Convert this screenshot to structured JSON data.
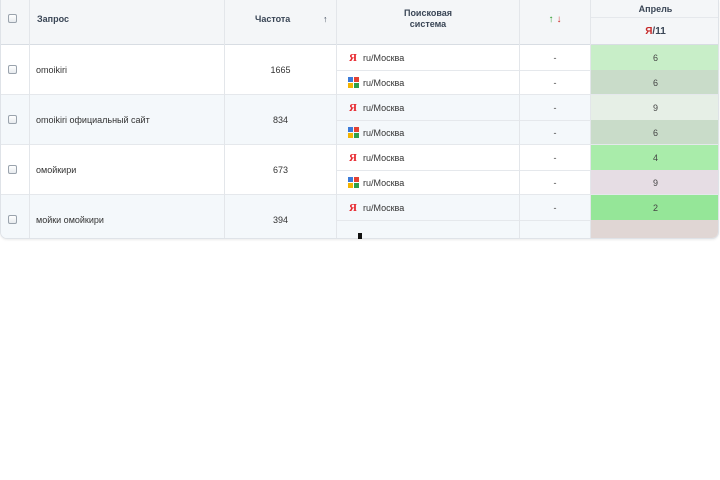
{
  "header": {
    "query_label": "Запрос",
    "frequency_label": "Частота",
    "frequency_sort_arrow": "↑",
    "search_engine_label_line1": "Поисковая",
    "search_engine_label_line2": "система",
    "change_up_arrow": "↑",
    "change_down_arrow": "↓",
    "month_label": "Апрель",
    "date_engine": "Я",
    "date_sep": "/",
    "date_day": "11"
  },
  "colors": {
    "header_bg": "#f4f6f8",
    "row_alt_bg": "#f4f8fb",
    "yandex_red": "#e8242b",
    "rank_green_light": "#c8eec8",
    "rank_green": "#a9ecaa",
    "rank_green_strong": "#95e698",
    "rank_gray_green": "#c9dcc9",
    "rank_pale": "#e6efe6",
    "rank_mauve": "#e6dde4",
    "rank_brown": "#e0d6d4"
  },
  "rows": [
    {
      "query": "omoikiri",
      "frequency": "1665",
      "engines": [
        {
          "icon": "yandex-icon",
          "region": "ru/Москва",
          "change": "-",
          "rank": "6",
          "rank_color": "#c8eec8"
        },
        {
          "icon": "google-icon",
          "region": "ru/Москва",
          "change": "-",
          "rank": "6",
          "rank_color": "#c9dcc9"
        }
      ]
    },
    {
      "query": "omoikiri официальный сайт",
      "frequency": "834",
      "engines": [
        {
          "icon": "yandex-icon",
          "region": "ru/Москва",
          "change": "-",
          "rank": "9",
          "rank_color": "#e6efe6"
        },
        {
          "icon": "google-icon",
          "region": "ru/Москва",
          "change": "-",
          "rank": "6",
          "rank_color": "#c9dcc9"
        }
      ]
    },
    {
      "query": "омойкири",
      "frequency": "673",
      "engines": [
        {
          "icon": "yandex-icon",
          "region": "ru/Москва",
          "change": "-",
          "rank": "4",
          "rank_color": "#a9ecaa"
        },
        {
          "icon": "google-icon",
          "region": "ru/Москва",
          "change": "-",
          "rank": "9",
          "rank_color": "#e6dde4"
        }
      ]
    },
    {
      "query": "мойки омойкири",
      "frequency": "394",
      "engines": [
        {
          "icon": "yandex-icon",
          "region": "ru/Москва",
          "change": "-",
          "rank": "2",
          "rank_color": "#95e698"
        },
        {
          "icon": "",
          "region": "",
          "change": "",
          "rank": "",
          "rank_color": "#e0d6d4"
        }
      ]
    }
  ]
}
